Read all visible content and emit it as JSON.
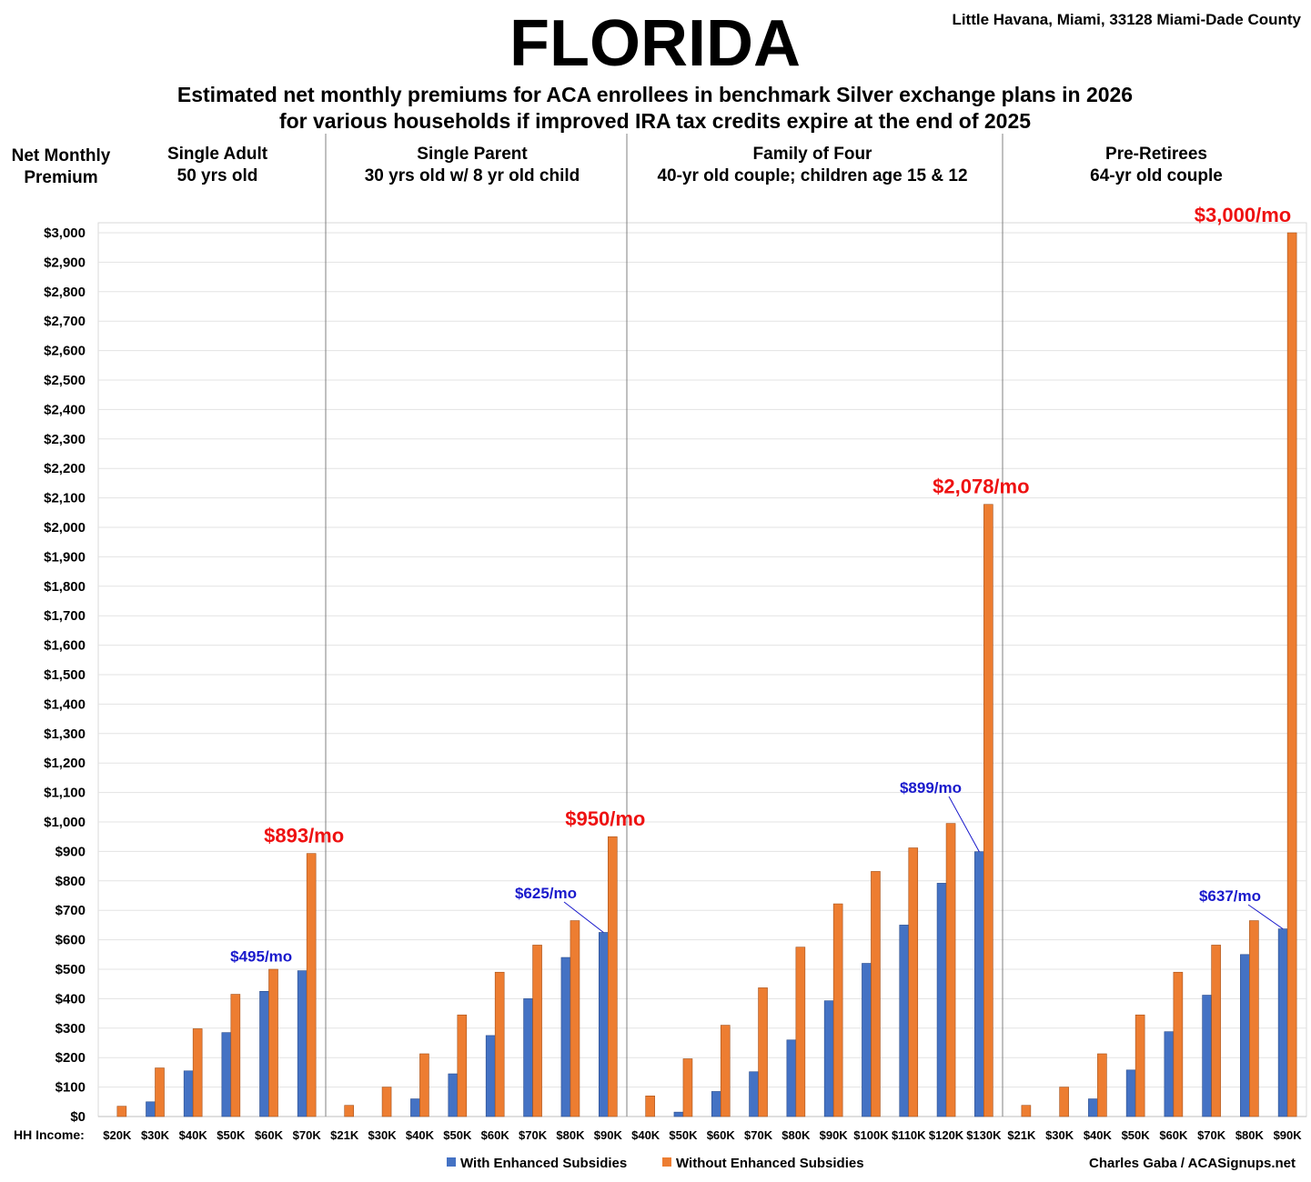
{
  "header": {
    "state": "FLORIDA",
    "location": "Little Havana, Miami, 33128 Miami-Dade County",
    "subtitle_line1": "Estimated net monthly premiums for ACA enrollees in benchmark Silver exchange plans in 2026",
    "subtitle_line2": "for various households if improved IRA tax credits expire at the end of 2025"
  },
  "footer": {
    "credit": "Charles Gaba / ACASignups.net"
  },
  "colors": {
    "with": "#4472c4",
    "without": "#ed7d31",
    "highlight_red": "#ee1111",
    "highlight_blue": "#1a1acc"
  },
  "chart_data": {
    "type": "bar",
    "ylabel_line1": "Net Monthly",
    "ylabel_line2": "Premium",
    "xlabel": "HH Income:",
    "ylim": [
      0,
      3000
    ],
    "ytick_step": 100,
    "yticks": [
      "$0",
      "$100",
      "$200",
      "$300",
      "$400",
      "$500",
      "$600",
      "$700",
      "$800",
      "$900",
      "$1,000",
      "$1,100",
      "$1,200",
      "$1,300",
      "$1,400",
      "$1,500",
      "$1,600",
      "$1,700",
      "$1,800",
      "$1,900",
      "$2,000",
      "$2,100",
      "$2,200",
      "$2,300",
      "$2,400",
      "$2,500",
      "$2,600",
      "$2,700",
      "$2,800",
      "$2,900",
      "$3,000"
    ],
    "grid": true,
    "legend": [
      "With Enhanced Subsidies",
      "Without Enhanced Subsidies"
    ],
    "legend_position": "bottom",
    "panels": [
      {
        "title_line1": "Single Adult",
        "title_line2": "50 yrs old",
        "categories": [
          "$20K",
          "$30K",
          "$40K",
          "$50K",
          "$60K",
          "$70K"
        ],
        "with": [
          0,
          50,
          155,
          285,
          425,
          495
        ],
        "without": [
          35,
          165,
          298,
          415,
          500,
          893
        ],
        "label_without": "$893/mo",
        "label_with": "$495/mo"
      },
      {
        "title_line1": "Single Parent",
        "title_line2": "30 yrs old w/ 8 yr old child",
        "categories": [
          "$21K",
          "$30K",
          "$40K",
          "$50K",
          "$60K",
          "$70K",
          "$80K",
          "$90K"
        ],
        "with": [
          0,
          0,
          60,
          145,
          275,
          400,
          540,
          625
        ],
        "without": [
          38,
          100,
          213,
          345,
          490,
          582,
          665,
          950
        ],
        "label_without": "$950/mo",
        "label_with": "$625/mo"
      },
      {
        "title_line1": "Family of Four",
        "title_line2": "40-yr old couple; children age 15 & 12",
        "categories": [
          "$40K",
          "$50K",
          "$60K",
          "$70K",
          "$80K",
          "$90K",
          "$100K",
          "$110K",
          "$120K",
          "$130K"
        ],
        "with": [
          0,
          15,
          85,
          152,
          260,
          393,
          520,
          650,
          792,
          899
        ],
        "without": [
          70,
          196,
          310,
          437,
          575,
          722,
          832,
          912,
          995,
          2078
        ],
        "label_without": "$2,078/mo",
        "label_with": "$899/mo"
      },
      {
        "title_line1": "Pre-Retirees",
        "title_line2": "64-yr old couple",
        "categories": [
          "$21K",
          "$30K",
          "$40K",
          "$50K",
          "$60K",
          "$70K",
          "$80K",
          "$90K"
        ],
        "with": [
          0,
          0,
          60,
          158,
          288,
          412,
          550,
          637
        ],
        "without": [
          38,
          100,
          213,
          345,
          490,
          582,
          665,
          3000
        ],
        "label_without": "$3,000/mo",
        "label_with": "$637/mo"
      }
    ]
  }
}
